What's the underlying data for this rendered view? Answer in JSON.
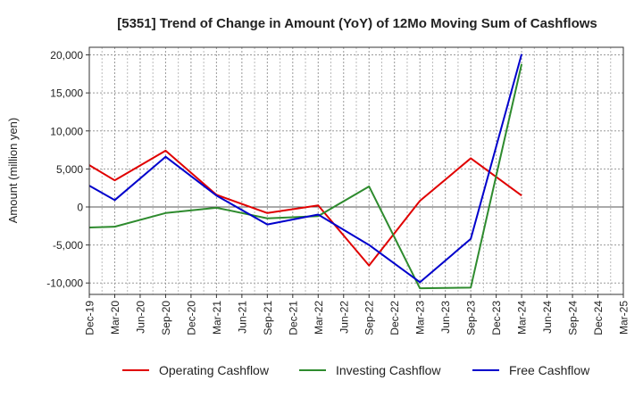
{
  "chart_data": {
    "type": "line",
    "title": "[5351]  Trend of Change in Amount (YoY) of 12Mo Moving Sum of Cashflows",
    "xlabel": "",
    "ylabel": "Amount (million yen)",
    "ylim": [
      -11500,
      21000
    ],
    "yticks": [
      20000,
      15000,
      10000,
      5000,
      0,
      -5000,
      -10000
    ],
    "ytick_labels": [
      "20,000",
      "15,000",
      "10,000",
      "5,000",
      "0",
      "-5,000",
      "-10,000"
    ],
    "categories": [
      "Dec-19",
      "Mar-20",
      "Jun-20",
      "Sep-20",
      "Dec-20",
      "Mar-21",
      "Jun-21",
      "Sep-21",
      "Dec-21",
      "Mar-22",
      "Jun-22",
      "Sep-22",
      "Dec-22",
      "Mar-23",
      "Jun-23",
      "Sep-23",
      "Dec-23",
      "Mar-24",
      "Jun-24",
      "Sep-24",
      "Dec-24",
      "Mar-25"
    ],
    "grid": true,
    "legend_position": "bottom",
    "series": [
      {
        "name": "Operating Cashflow",
        "color": "#e00000",
        "values": [
          5500,
          3500,
          null,
          7400,
          null,
          1600,
          null,
          -800,
          null,
          200,
          null,
          -7700,
          null,
          800,
          null,
          6400,
          null,
          1500,
          null,
          null,
          null,
          null
        ]
      },
      {
        "name": "Investing Cashflow",
        "color": "#2e8b2e",
        "values": [
          -2700,
          -2600,
          null,
          -800,
          null,
          -100,
          null,
          -1500,
          null,
          -1200,
          null,
          2700,
          null,
          -10700,
          null,
          -10600,
          null,
          18800,
          null,
          null,
          null,
          null
        ]
      },
      {
        "name": "Free Cashflow",
        "color": "#0000cc",
        "values": [
          2800,
          900,
          null,
          6600,
          null,
          1500,
          null,
          -2300,
          null,
          -1000,
          null,
          -5000,
          null,
          -9900,
          null,
          -4200,
          null,
          20100,
          null,
          null,
          null,
          null
        ]
      }
    ]
  }
}
